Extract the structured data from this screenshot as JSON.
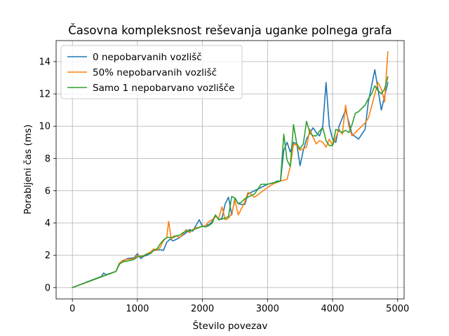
{
  "chart_data": {
    "type": "line",
    "title": "Časovna kompleksnost reševanja uganke polnega grafa",
    "xlabel": "Število povezav",
    "ylabel": "Porabljeni čas (ms)",
    "xlim": [
      -250,
      5100
    ],
    "ylim": [
      -0.7,
      15.3
    ],
    "x_ticks": [
      0,
      1000,
      2000,
      3000,
      4000,
      5000
    ],
    "y_ticks": [
      0,
      2,
      4,
      6,
      8,
      10,
      12,
      14
    ],
    "grid": true,
    "legend_position": "top-left",
    "series": [
      {
        "name": "0 nepobarvanih vozlišč",
        "color": "#1f77b4",
        "x": [
          0,
          450,
          480,
          520,
          670,
          730,
          800,
          850,
          950,
          1000,
          1050,
          1100,
          1150,
          1250,
          1350,
          1400,
          1450,
          1500,
          1550,
          1650,
          1750,
          1800,
          1850,
          1950,
          2000,
          2100,
          2150,
          2200,
          2250,
          2300,
          2350,
          2400,
          2450,
          2500,
          2550,
          2600,
          2650,
          2700,
          2750,
          2800,
          2900,
          3000,
          3100,
          3150,
          3200,
          3250,
          3300,
          3350,
          3400,
          3450,
          3500,
          3550,
          3600,
          3700,
          3750,
          3800,
          3850,
          3900,
          3950,
          4000,
          4050,
          4100,
          4200,
          4300,
          4400,
          4500,
          4550,
          4650,
          4750,
          4850
        ],
        "y": [
          0,
          0.7,
          0.9,
          0.8,
          1.0,
          1.5,
          1.7,
          1.8,
          1.85,
          2.1,
          1.8,
          1.95,
          2.0,
          2.3,
          2.35,
          2.3,
          2.8,
          3.0,
          2.9,
          3.1,
          3.4,
          3.6,
          3.5,
          4.2,
          3.8,
          3.9,
          4.1,
          4.5,
          4.2,
          4.3,
          5.2,
          5.6,
          4.5,
          5.55,
          5.2,
          5.15,
          5.15,
          5.8,
          5.9,
          6.0,
          6.2,
          6.4,
          6.5,
          6.6,
          6.6,
          8.5,
          9.0,
          8.4,
          9.0,
          8.9,
          7.55,
          8.5,
          9.2,
          9.9,
          9.6,
          9.4,
          10.0,
          12.7,
          10.0,
          9.2,
          9.0,
          10.0,
          11.0,
          9.5,
          9.2,
          9.8,
          11.5,
          13.5,
          11.0,
          12.7
        ]
      },
      {
        "name": "50% nepobarvanih vozlišč",
        "color": "#ff7f0e",
        "x": [
          0,
          670,
          720,
          780,
          850,
          950,
          1000,
          1050,
          1100,
          1150,
          1200,
          1250,
          1300,
          1350,
          1400,
          1450,
          1480,
          1520,
          1560,
          1600,
          1650,
          1700,
          1750,
          1800,
          1850,
          1900,
          2000,
          2050,
          2100,
          2150,
          2200,
          2250,
          2300,
          2350,
          2400,
          2450,
          2500,
          2550,
          2600,
          2650,
          2700,
          2800,
          2900,
          3000,
          3100,
          3200,
          3300,
          3350,
          3400,
          3450,
          3500,
          3550,
          3600,
          3650,
          3700,
          3750,
          3800,
          3850,
          3900,
          3950,
          4000,
          4050,
          4100,
          4150,
          4200,
          4250,
          4300,
          4400,
          4500,
          4550,
          4600,
          4650,
          4700,
          4750,
          4800,
          4850
        ],
        "y": [
          0,
          1.0,
          1.5,
          1.7,
          1.75,
          1.8,
          2.0,
          1.9,
          2.0,
          2.1,
          2.2,
          2.4,
          2.3,
          2.5,
          2.9,
          3.1,
          4.1,
          3.0,
          3.2,
          3.2,
          3.1,
          3.3,
          3.6,
          3.4,
          3.6,
          3.7,
          3.8,
          3.85,
          4.1,
          4.2,
          4.4,
          4.3,
          5.0,
          4.2,
          4.3,
          4.6,
          5.4,
          4.5,
          4.9,
          5.3,
          5.9,
          5.6,
          5.9,
          6.2,
          6.45,
          6.6,
          6.7,
          7.5,
          8.9,
          8.8,
          8.5,
          8.6,
          8.7,
          9.8,
          9.3,
          8.9,
          9.1,
          9.0,
          8.7,
          9.2,
          8.8,
          9.3,
          9.8,
          9.5,
          11.3,
          10.0,
          9.4,
          9.8,
          10.2,
          10.5,
          11.2,
          12.0,
          12.7,
          12.3,
          11.5,
          14.6
        ]
      },
      {
        "name": "Samo 1 nepobarvano vozlišče",
        "color": "#2ca02c",
        "x": [
          0,
          670,
          720,
          780,
          850,
          950,
          1000,
          1050,
          1100,
          1150,
          1200,
          1250,
          1300,
          1350,
          1400,
          1450,
          1500,
          1550,
          1600,
          1650,
          1700,
          1750,
          1800,
          1850,
          1900,
          2000,
          2050,
          2100,
          2150,
          2200,
          2250,
          2300,
          2350,
          2400,
          2450,
          2500,
          2550,
          2600,
          2650,
          2700,
          2800,
          2900,
          3000,
          3100,
          3200,
          3250,
          3300,
          3350,
          3400,
          3450,
          3500,
          3550,
          3600,
          3650,
          3700,
          3750,
          3800,
          3850,
          3900,
          3950,
          4000,
          4050,
          4100,
          4150,
          4200,
          4250,
          4300,
          4350,
          4400,
          4500,
          4550,
          4600,
          4650,
          4700,
          4750,
          4800,
          4850
        ],
        "y": [
          0,
          1.0,
          1.45,
          1.6,
          1.65,
          1.75,
          1.9,
          1.95,
          1.95,
          2.1,
          2.1,
          2.3,
          2.4,
          2.7,
          2.95,
          3.1,
          3.1,
          3.1,
          3.2,
          3.25,
          3.4,
          3.5,
          3.5,
          3.55,
          3.65,
          3.8,
          3.75,
          3.85,
          4.0,
          4.5,
          4.2,
          4.25,
          4.3,
          4.4,
          5.65,
          5.55,
          5.2,
          5.3,
          5.5,
          5.6,
          5.8,
          6.4,
          6.4,
          6.5,
          6.6,
          9.5,
          7.9,
          7.5,
          10.1,
          8.9,
          8.6,
          8.9,
          10.3,
          9.6,
          9.4,
          9.4,
          9.7,
          9.9,
          9.1,
          8.8,
          8.8,
          9.8,
          9.7,
          9.6,
          9.75,
          9.6,
          10.1,
          10.8,
          10.9,
          11.3,
          11.7,
          12.0,
          12.5,
          12.2,
          12.0,
          12.3,
          13.05
        ]
      }
    ]
  }
}
